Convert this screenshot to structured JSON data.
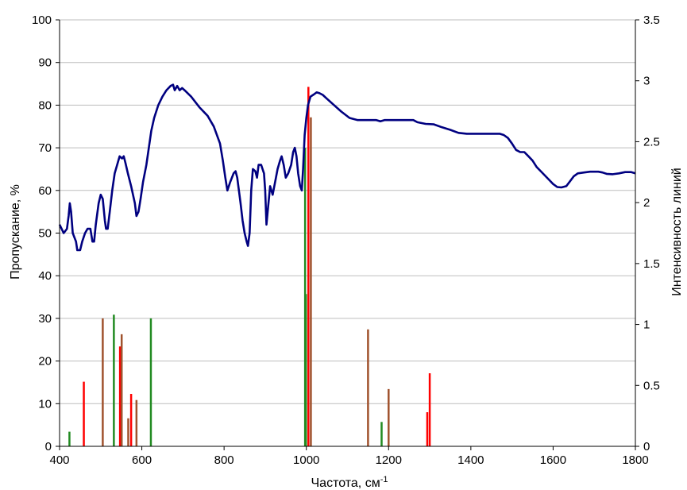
{
  "chart_data": {
    "type": "line",
    "title": "",
    "xlabel": "Частота, см",
    "xlabel_sup": "-1",
    "ylabel": "Пропускание, %",
    "y2label": "Интенсивность линий",
    "xlim": [
      400,
      1800
    ],
    "ylim": [
      0,
      100
    ],
    "y2lim": [
      0,
      3.5
    ],
    "grid": true,
    "x_ticks": [
      "400",
      "600",
      "800",
      "1000",
      "1200",
      "1400",
      "1600",
      "1800"
    ],
    "y_ticks": [
      "0",
      "10",
      "20",
      "30",
      "40",
      "50",
      "60",
      "70",
      "80",
      "90",
      "100"
    ],
    "y2_ticks": [
      "0",
      "0.5",
      "1",
      "1.5",
      "2",
      "2.5",
      "3",
      "3.5"
    ],
    "series": [
      {
        "axis": "left",
        "color": "#000080",
        "points": [
          [
            400,
            52
          ],
          [
            410,
            50
          ],
          [
            418,
            51
          ],
          [
            422,
            54
          ],
          [
            425,
            57
          ],
          [
            428,
            55
          ],
          [
            432,
            50
          ],
          [
            440,
            48
          ],
          [
            443,
            46
          ],
          [
            450,
            46
          ],
          [
            455,
            48
          ],
          [
            462,
            50
          ],
          [
            468,
            51
          ],
          [
            475,
            51
          ],
          [
            480,
            48
          ],
          [
            484,
            48
          ],
          [
            488,
            52
          ],
          [
            495,
            57
          ],
          [
            500,
            59
          ],
          [
            505,
            58
          ],
          [
            510,
            53
          ],
          [
            513,
            51
          ],
          [
            517,
            51
          ],
          [
            522,
            55
          ],
          [
            528,
            60
          ],
          [
            534,
            64
          ],
          [
            540,
            66
          ],
          [
            546,
            68
          ],
          [
            552,
            67.5
          ],
          [
            556,
            68
          ],
          [
            560,
            66.5
          ],
          [
            566,
            64
          ],
          [
            574,
            61
          ],
          [
            583,
            57
          ],
          [
            587,
            54
          ],
          [
            592,
            55
          ],
          [
            597,
            58
          ],
          [
            603,
            62
          ],
          [
            611,
            66
          ],
          [
            617,
            70
          ],
          [
            623,
            74
          ],
          [
            630,
            77
          ],
          [
            640,
            80
          ],
          [
            650,
            82
          ],
          [
            660,
            83.5
          ],
          [
            670,
            84.5
          ],
          [
            676,
            84.8
          ],
          [
            680,
            83.5
          ],
          [
            686,
            84.5
          ],
          [
            692,
            83.5
          ],
          [
            698,
            84
          ],
          [
            704,
            83.5
          ],
          [
            720,
            82
          ],
          [
            740,
            79.5
          ],
          [
            760,
            77.5
          ],
          [
            775,
            75
          ],
          [
            790,
            71
          ],
          [
            797,
            67
          ],
          [
            803,
            63
          ],
          [
            808,
            60
          ],
          [
            815,
            62
          ],
          [
            823,
            64
          ],
          [
            828,
            64.5
          ],
          [
            832,
            63
          ],
          [
            836,
            60
          ],
          [
            840,
            57
          ],
          [
            845,
            53
          ],
          [
            850,
            50
          ],
          [
            855,
            48
          ],
          [
            858,
            47
          ],
          [
            862,
            50
          ],
          [
            866,
            60
          ],
          [
            870,
            65
          ],
          [
            876,
            64.5
          ],
          [
            880,
            63
          ],
          [
            884,
            66
          ],
          [
            890,
            66
          ],
          [
            897,
            64
          ],
          [
            900,
            60
          ],
          [
            903,
            52
          ],
          [
            906,
            55
          ],
          [
            912,
            61
          ],
          [
            918,
            59
          ],
          [
            924,
            62
          ],
          [
            930,
            65
          ],
          [
            936,
            67
          ],
          [
            940,
            68
          ],
          [
            945,
            66
          ],
          [
            950,
            63
          ],
          [
            956,
            64
          ],
          [
            963,
            66
          ],
          [
            968,
            69
          ],
          [
            972,
            70
          ],
          [
            976,
            68
          ],
          [
            980,
            64
          ],
          [
            985,
            61
          ],
          [
            989,
            60
          ],
          [
            992,
            65
          ],
          [
            996,
            73
          ],
          [
            1000,
            77
          ],
          [
            1004,
            80
          ],
          [
            1010,
            82
          ],
          [
            1018,
            82.5
          ],
          [
            1025,
            83
          ],
          [
            1032,
            82.8
          ],
          [
            1040,
            82.4
          ],
          [
            1050,
            81.5
          ],
          [
            1065,
            80.2
          ],
          [
            1085,
            78.5
          ],
          [
            1105,
            77
          ],
          [
            1125,
            76.5
          ],
          [
            1150,
            76.5
          ],
          [
            1170,
            76.5
          ],
          [
            1180,
            76.2
          ],
          [
            1190,
            76.5
          ],
          [
            1210,
            76.5
          ],
          [
            1240,
            76.5
          ],
          [
            1260,
            76.5
          ],
          [
            1270,
            76
          ],
          [
            1290,
            75.6
          ],
          [
            1310,
            75.5
          ],
          [
            1330,
            74.8
          ],
          [
            1350,
            74.2
          ],
          [
            1370,
            73.5
          ],
          [
            1390,
            73.3
          ],
          [
            1420,
            73.3
          ],
          [
            1450,
            73.3
          ],
          [
            1470,
            73.3
          ],
          [
            1480,
            73
          ],
          [
            1490,
            72.3
          ],
          [
            1500,
            71
          ],
          [
            1510,
            69.5
          ],
          [
            1520,
            69
          ],
          [
            1530,
            69
          ],
          [
            1540,
            68
          ],
          [
            1550,
            67
          ],
          [
            1560,
            65.5
          ],
          [
            1570,
            64.5
          ],
          [
            1580,
            63.5
          ],
          [
            1590,
            62.5
          ],
          [
            1600,
            61.5
          ],
          [
            1610,
            60.8
          ],
          [
            1620,
            60.7
          ],
          [
            1632,
            61
          ],
          [
            1640,
            62
          ],
          [
            1650,
            63.3
          ],
          [
            1660,
            64
          ],
          [
            1675,
            64.2
          ],
          [
            1690,
            64.4
          ],
          [
            1710,
            64.4
          ],
          [
            1720,
            64.2
          ],
          [
            1730,
            63.9
          ],
          [
            1745,
            63.8
          ],
          [
            1760,
            64
          ],
          [
            1775,
            64.3
          ],
          [
            1790,
            64.3
          ],
          [
            1800,
            64
          ]
        ]
      }
    ],
    "lines": [
      {
        "x": 424,
        "i": 0.12,
        "color": "#228B22"
      },
      {
        "x": 459,
        "i": 0.53,
        "color": "#FF0000"
      },
      {
        "x": 505,
        "i": 1.05,
        "color": "#A0522D"
      },
      {
        "x": 532,
        "i": 1.08,
        "color": "#228B22"
      },
      {
        "x": 547,
        "i": 0.82,
        "color": "#FF0000"
      },
      {
        "x": 551,
        "i": 0.92,
        "color": "#A0522D"
      },
      {
        "x": 567,
        "i": 0.23,
        "color": "#A0522D"
      },
      {
        "x": 574,
        "i": 0.43,
        "color": "#FF0000"
      },
      {
        "x": 587,
        "i": 0.38,
        "color": "#A0522D"
      },
      {
        "x": 622,
        "i": 1.05,
        "color": "#228B22"
      },
      {
        "x": 997,
        "i": 2.45,
        "color": "#228B22"
      },
      {
        "x": 999,
        "i": 1.25,
        "color": "#228B22"
      },
      {
        "x": 1005,
        "i": 2.95,
        "color": "#FF0000"
      },
      {
        "x": 1011,
        "i": 2.7,
        "color": "#A0522D"
      },
      {
        "x": 1150,
        "i": 0.96,
        "color": "#A0522D"
      },
      {
        "x": 1183,
        "i": 0.2,
        "color": "#228B22"
      },
      {
        "x": 1200,
        "i": 0.47,
        "color": "#A0522D"
      },
      {
        "x": 1294,
        "i": 0.28,
        "color": "#FF0000"
      },
      {
        "x": 1300,
        "i": 0.6,
        "color": "#FF0000"
      }
    ]
  }
}
